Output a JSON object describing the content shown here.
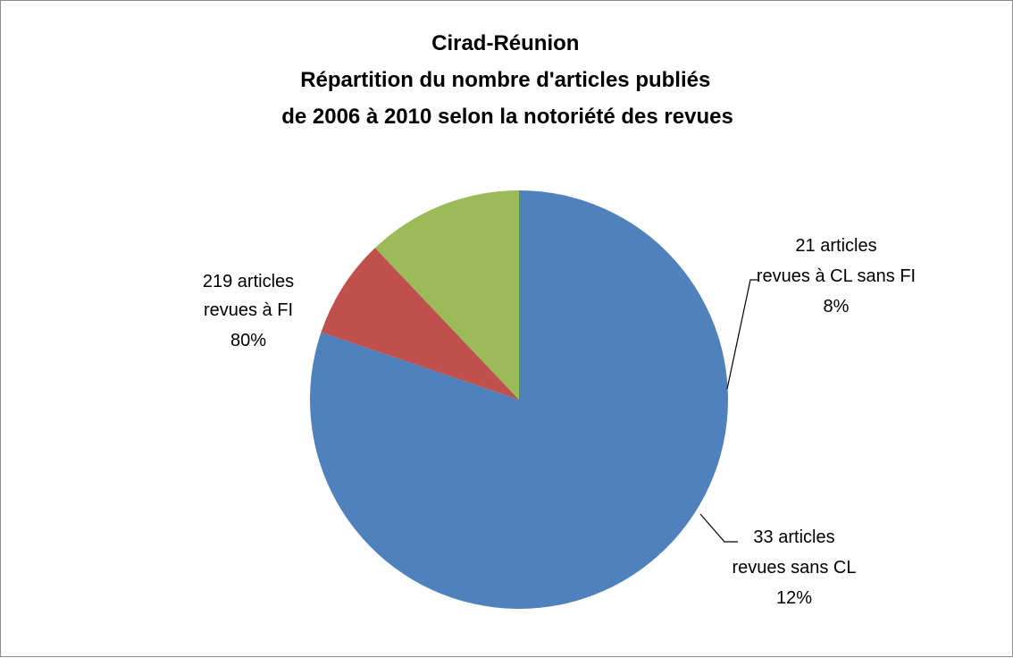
{
  "chart_data": {
    "type": "pie",
    "title": "Cirad-Réunion\nRépartition du nombre d'articles publiés\nde 2006 à 2010 selon la notoriété des revues",
    "slices": [
      {
        "count_label": "219 articles",
        "category": "revues à FI",
        "percent_label": "80%",
        "value": 219,
        "color": "#4f81bd"
      },
      {
        "count_label": "21 articles",
        "category": "revues à CL sans FI",
        "percent_label": "8%",
        "value": 21,
        "color": "#c0504d"
      },
      {
        "count_label": "33 articles",
        "category": "revues sans CL",
        "percent_label": "12%",
        "value": 33,
        "color": "#9bbb59"
      }
    ]
  }
}
